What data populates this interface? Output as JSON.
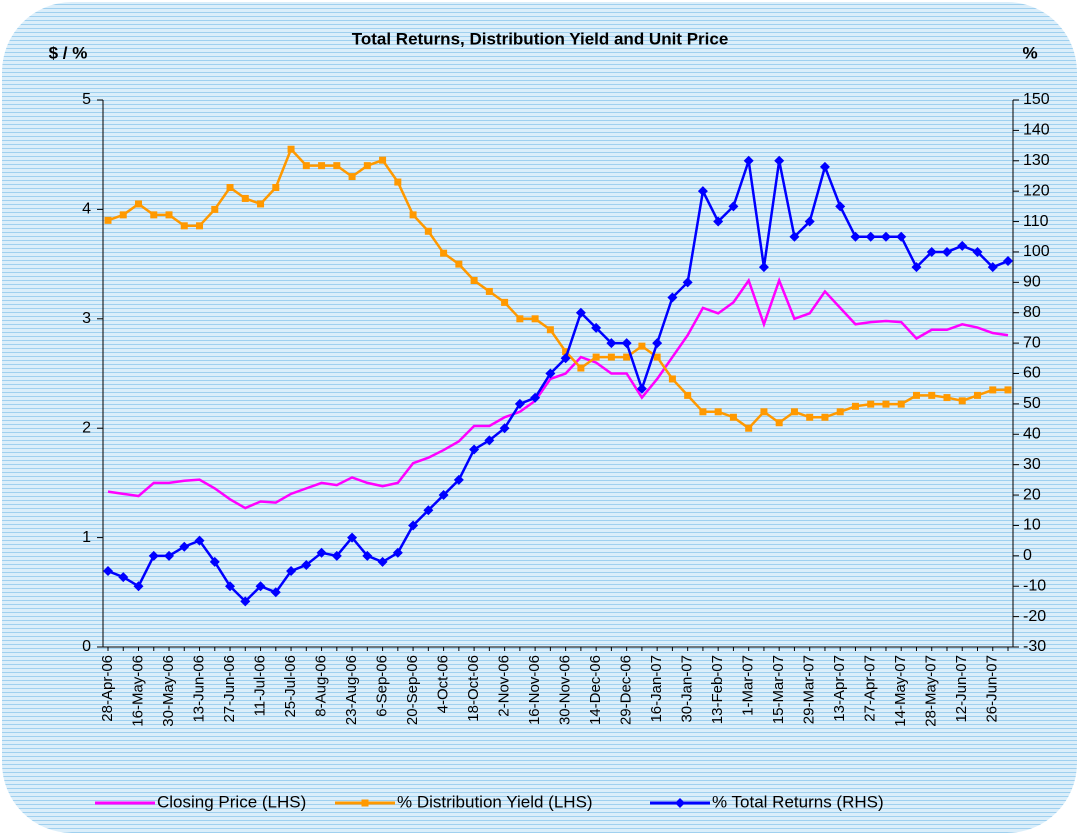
{
  "chart_data": {
    "type": "line",
    "title": "Total Returns, Distribution Yield and Unit Price",
    "y_label": "$ / %",
    "y2_label": "%",
    "categories": [
      "28-Apr-06",
      null,
      "16-May-06",
      null,
      "30-May-06",
      null,
      "13-Jun-06",
      null,
      "27-Jun-06",
      null,
      "11-Jul-06",
      null,
      "25-Jul-06",
      null,
      "8-Aug-06",
      null,
      "23-Aug-06",
      null,
      "6-Sep-06",
      null,
      "20-Sep-06",
      null,
      "4-Oct-06",
      null,
      "18-Oct-06",
      null,
      "2-Nov-06",
      null,
      "16-Nov-06",
      null,
      "30-Nov-06",
      null,
      "14-Dec-06",
      null,
      "29-Dec-06",
      null,
      "16-Jan-07",
      null,
      "30-Jan-07",
      null,
      "13-Feb-07",
      null,
      "1-Mar-07",
      null,
      "15-Mar-07",
      null,
      "29-Mar-07",
      null,
      "13-Apr-07",
      null,
      "27-Apr-07",
      null,
      "14-May-07",
      null,
      "28-May-07",
      null,
      "12-Jun-07",
      null,
      "26-Jun-07",
      null
    ],
    "series": [
      {
        "name": "Closing Price (LHS)",
        "color": "#ff00ff",
        "marker": "none",
        "values": [
          1.42,
          1.4,
          1.38,
          1.5,
          1.5,
          1.52,
          1.53,
          1.45,
          1.35,
          1.27,
          1.33,
          1.32,
          1.4,
          1.45,
          1.5,
          1.48,
          1.55,
          1.5,
          1.47,
          1.5,
          1.68,
          1.73,
          1.8,
          1.88,
          2.02,
          2.02,
          2.1,
          2.15,
          2.25,
          2.45,
          2.5,
          2.65,
          2.6,
          2.5,
          2.5,
          2.28,
          2.45,
          2.65,
          2.85,
          3.1,
          3.05,
          3.15,
          3.35,
          2.95,
          3.35,
          3.0,
          3.05,
          3.25,
          3.1,
          2.95,
          2.97,
          2.98,
          2.97,
          2.82,
          2.9,
          2.9,
          2.95,
          2.92,
          2.87,
          2.85
        ]
      },
      {
        "name": "% Distribution Yield (LHS)",
        "color": "#ff9900",
        "marker": "square",
        "values": [
          3.9,
          3.95,
          4.05,
          3.95,
          3.95,
          3.85,
          3.85,
          4.0,
          4.2,
          4.1,
          4.05,
          4.2,
          4.55,
          4.4,
          4.4,
          4.4,
          4.3,
          4.4,
          4.45,
          4.25,
          3.95,
          3.8,
          3.6,
          3.5,
          3.35,
          3.25,
          3.15,
          3.0,
          3.0,
          2.9,
          2.7,
          2.55,
          2.65,
          2.65,
          2.65,
          2.75,
          2.65,
          2.45,
          2.3,
          2.15,
          2.15,
          2.1,
          2.0,
          2.15,
          2.05,
          2.15,
          2.1,
          2.1,
          2.15,
          2.2,
          2.22,
          2.22,
          2.22,
          2.3,
          2.3,
          2.28,
          2.25,
          2.3,
          2.35,
          2.35
        ]
      },
      {
        "name": "% Total Returns (RHS)",
        "color": "#0000ff",
        "marker": "diamond",
        "axis": "y2",
        "values": [
          -5,
          -7,
          -10,
          0,
          0,
          3,
          5,
          -2,
          -10,
          -15,
          -10,
          -12,
          -5,
          -3,
          1,
          0,
          6,
          0,
          -2,
          1,
          10,
          15,
          20,
          25,
          35,
          38,
          42,
          50,
          52,
          60,
          65,
          80,
          75,
          70,
          70,
          55,
          70,
          85,
          90,
          120,
          110,
          115,
          130,
          95,
          130,
          105,
          110,
          128,
          115,
          105,
          105,
          105,
          105,
          95,
          100,
          100,
          102,
          100,
          95,
          97
        ]
      }
    ],
    "ylim": [
      0,
      5
    ],
    "yticks": [
      0,
      1,
      2,
      3,
      4,
      5
    ],
    "y2lim": [
      -30,
      150
    ],
    "y2ticks": [
      -30,
      -20,
      -10,
      0,
      10,
      20,
      30,
      40,
      50,
      60,
      70,
      80,
      90,
      100,
      110,
      120,
      130,
      140,
      150
    ],
    "legend": "bottom"
  }
}
